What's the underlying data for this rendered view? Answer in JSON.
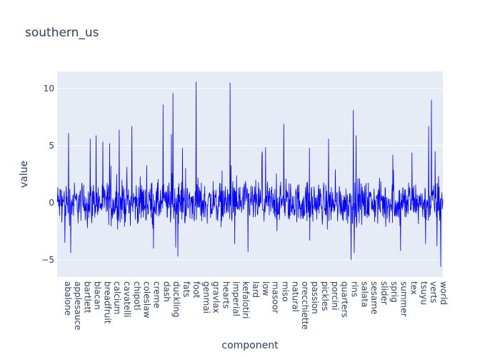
{
  "chart_data": {
    "type": "line",
    "title": "southern_us",
    "xlabel": "component",
    "ylabel": "value",
    "x_tick_labels": [
      "abalone",
      "applesauce",
      "bartlett",
      "blacan",
      "breadfruit",
      "calcium",
      "cavatelli",
      "chipotl",
      "coleslaw",
      "creme",
      "dash",
      "duckling",
      "fats",
      "foot",
      "genmai",
      "gravlax",
      "hearts",
      "imperial",
      "kefalotiri",
      "lard",
      "low",
      "masoor",
      "miso",
      "natural",
      "orecchiette",
      "passion",
      "pickles",
      "porcini",
      "quarters",
      "rins",
      "salata",
      "sesame",
      "slider",
      "sprig",
      "summer",
      "tex",
      "tsuyu",
      "verts",
      "world"
    ],
    "y_ticks": [
      -5,
      0,
      5,
      10
    ],
    "ylim": [
      -6.5,
      11.5
    ],
    "series_color": "#0000ff",
    "num_points": 1250,
    "peaks": [
      {
        "x": 0.03,
        "y": 6.1
      },
      {
        "x": 0.086,
        "y": 5.6
      },
      {
        "x": 0.101,
        "y": 5.9
      },
      {
        "x": 0.136,
        "y": 5.2
      },
      {
        "x": 0.161,
        "y": 6.4
      },
      {
        "x": 0.194,
        "y": 6.7
      },
      {
        "x": 0.275,
        "y": 8.6
      },
      {
        "x": 0.3,
        "y": 9.6
      },
      {
        "x": 0.296,
        "y": 6.0
      },
      {
        "x": 0.313,
        "y": -4.7
      },
      {
        "x": 0.325,
        "y": 4.8
      },
      {
        "x": 0.36,
        "y": 10.6
      },
      {
        "x": 0.448,
        "y": 10.5
      },
      {
        "x": 0.46,
        "y": -3.6
      },
      {
        "x": 0.495,
        "y": -4.3
      },
      {
        "x": 0.588,
        "y": 6.9
      },
      {
        "x": 0.532,
        "y": 4.5
      },
      {
        "x": 0.654,
        "y": 4.8
      },
      {
        "x": 0.704,
        "y": 5.6
      },
      {
        "x": 0.762,
        "y": -5.0
      },
      {
        "x": 0.768,
        "y": 8.1
      },
      {
        "x": 0.775,
        "y": 5.9
      },
      {
        "x": 0.77,
        "y": -4.4
      },
      {
        "x": 0.87,
        "y": 4.2
      },
      {
        "x": 0.89,
        "y": -4.2
      },
      {
        "x": 0.92,
        "y": 4.4
      },
      {
        "x": 0.955,
        "y": -3.6
      },
      {
        "x": 0.963,
        "y": 6.7
      },
      {
        "x": 0.97,
        "y": 9.0
      },
      {
        "x": 0.98,
        "y": 4.5
      },
      {
        "x": 0.994,
        "y": -5.6
      },
      {
        "x": 0.985,
        "y": -3.8
      },
      {
        "x": 0.02,
        "y": -3.5
      },
      {
        "x": 0.035,
        "y": -4.4
      },
      {
        "x": 0.25,
        "y": -4.0
      },
      {
        "x": 0.655,
        "y": -3.3
      }
    ],
    "noise_amplitude": 1.1,
    "grid": true
  }
}
